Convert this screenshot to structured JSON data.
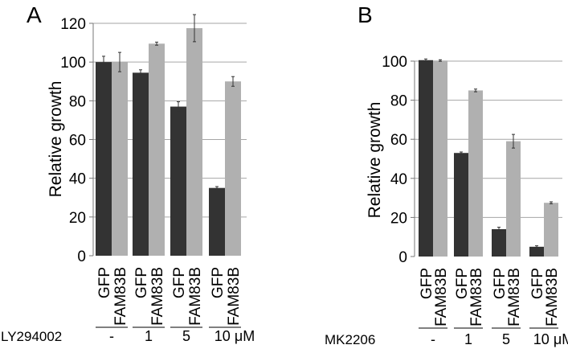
{
  "charts": {
    "A": {
      "panel": "A",
      "drug": "LY294002",
      "groups": [
        "-",
        "1",
        "5",
        "10 μM"
      ]
    },
    "B": {
      "panel": "B",
      "drug": "MK2206",
      "groups": [
        "-",
        "1",
        "5",
        "10 μM"
      ]
    }
  },
  "chart_data": [
    {
      "type": "bar",
      "panel": "A",
      "ylabel": "Relative growth",
      "ylim": [
        0,
        120
      ],
      "yticks": [
        0,
        20,
        40,
        60,
        80,
        100,
        120
      ],
      "grid": true,
      "categories": [
        "-",
        "1",
        "5",
        "10 μM"
      ],
      "category_prefix": "LY294002",
      "bar_labels": [
        "GFP",
        "FAM83B"
      ],
      "series": [
        {
          "name": "GFP",
          "color": "#333333",
          "values": [
            100,
            94.5,
            77,
            35
          ],
          "errors": [
            3,
            1.5,
            2.5,
            0.7
          ]
        },
        {
          "name": "FAM83B",
          "color": "#b0b0b0",
          "values": [
            100,
            109.5,
            117.5,
            90
          ],
          "errors": [
            5,
            0.8,
            7,
            2.5
          ]
        }
      ]
    },
    {
      "type": "bar",
      "panel": "B",
      "ylabel": "Relative growth",
      "ylim": [
        0,
        100
      ],
      "yticks": [
        0,
        20,
        40,
        60,
        80,
        100
      ],
      "grid": true,
      "categories": [
        "-",
        "1",
        "5",
        "10 μM"
      ],
      "category_prefix": "MK2206",
      "bar_labels": [
        "GFP",
        "FAM83B"
      ],
      "series": [
        {
          "name": "GFP",
          "color": "#333333",
          "values": [
            100.5,
            53,
            14,
            5
          ],
          "errors": [
            0.6,
            0.5,
            1,
            0.5
          ]
        },
        {
          "name": "FAM83B",
          "color": "#b0b0b0",
          "values": [
            100.3,
            85,
            59,
            27.5
          ],
          "errors": [
            0.4,
            0.7,
            3.5,
            0.5
          ]
        }
      ]
    }
  ]
}
